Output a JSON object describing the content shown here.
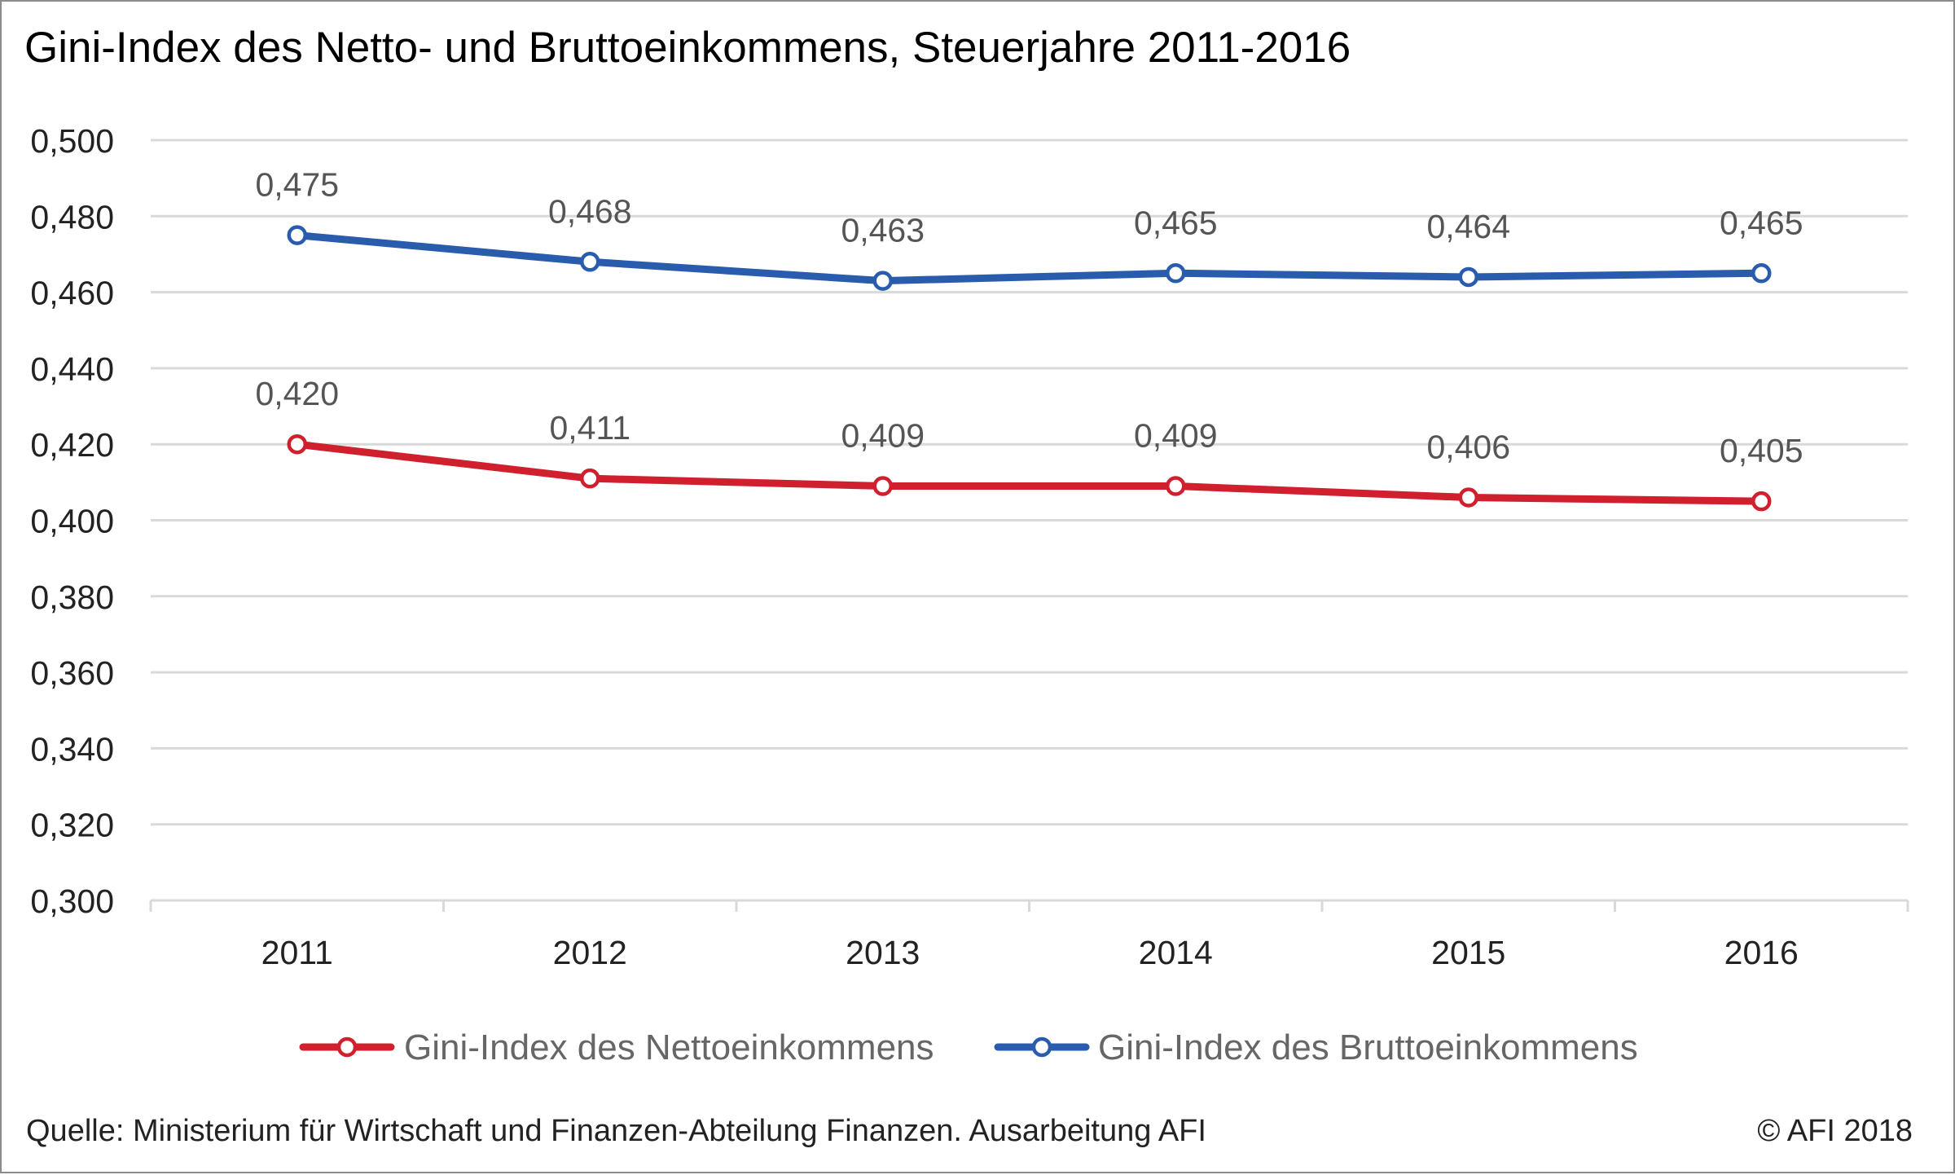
{
  "chart_data": {
    "type": "line",
    "title": "Gini-Index des Netto- und Bruttoeinkommens, Steuerjahre 2011-2016",
    "categories": [
      "2011",
      "2012",
      "2013",
      "2014",
      "2015",
      "2016"
    ],
    "ylim": [
      0.3,
      0.5
    ],
    "y_ticks": [
      0.5,
      0.48,
      0.46,
      0.44,
      0.42,
      0.4,
      0.38,
      0.36,
      0.34,
      0.32,
      0.3
    ],
    "y_tick_labels": [
      "0,500",
      "0,480",
      "0,460",
      "0,440",
      "0,420",
      "0,400",
      "0,380",
      "0,360",
      "0,340",
      "0,320",
      "0,300"
    ],
    "grid": true,
    "legend_position": "bottom",
    "series": [
      {
        "name": "Gini-Index des Nettoeinkommens",
        "color": "#d0202e",
        "values": [
          0.42,
          0.411,
          0.409,
          0.409,
          0.406,
          0.405
        ],
        "labels": [
          "0,420",
          "0,411",
          "0,409",
          "0,409",
          "0,406",
          "0,405"
        ]
      },
      {
        "name": "Gini-Index des Bruttoeinkommens",
        "color": "#2a5cad",
        "values": [
          0.475,
          0.468,
          0.463,
          0.465,
          0.464,
          0.465
        ],
        "labels": [
          "0,475",
          "0,468",
          "0,463",
          "0,465",
          "0,464",
          "0,465"
        ]
      }
    ]
  },
  "footer": {
    "source": "Quelle: Ministerium für Wirtschaft und Finanzen-Abteilung Finanzen.  Ausarbeitung AFI",
    "copyright": "© AFI 2018"
  }
}
